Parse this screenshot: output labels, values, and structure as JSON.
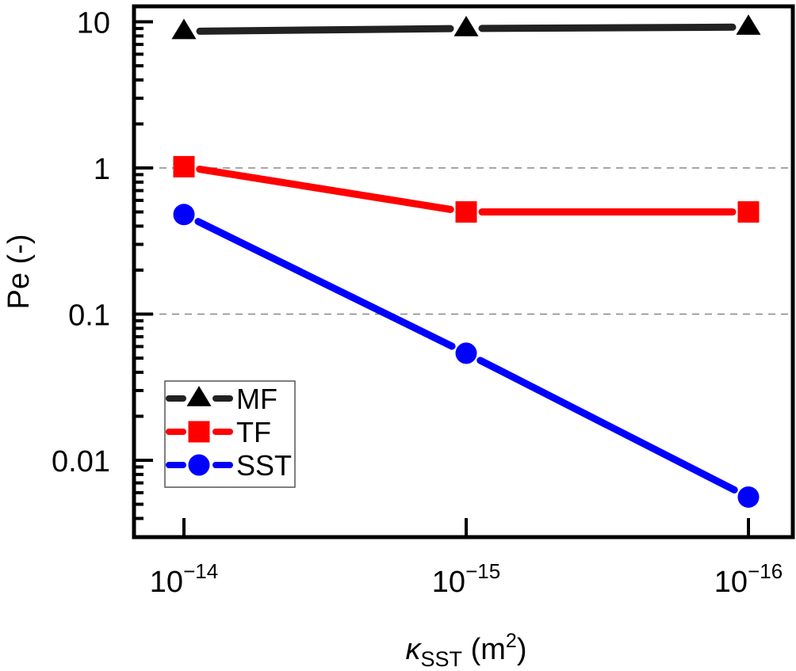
{
  "chart_data": {
    "type": "line",
    "title": "",
    "xlabel": {
      "main": "κ",
      "sub": "SST",
      "unit_pre": " (m",
      "unit_sup": "2",
      "unit_post": ")"
    },
    "ylabel": "Pe (-)",
    "x_scale": "categorical-log",
    "y_scale": "log",
    "ylim": [
      0.003,
      13
    ],
    "categories": [
      {
        "base": "10",
        "exp": "−14",
        "value": 1e-14
      },
      {
        "base": "10",
        "exp": "−15",
        "value": 1e-15
      },
      {
        "base": "10",
        "exp": "−16",
        "value": 1e-16
      }
    ],
    "yticks": [
      {
        "label": "10",
        "value": 10
      },
      {
        "label": "1",
        "value": 1
      },
      {
        "label": "0.1",
        "value": 0.1
      },
      {
        "label": "0.01",
        "value": 0.01
      }
    ],
    "grid": {
      "y_dashed_at": [
        1,
        0.1
      ],
      "color": "#888888"
    },
    "series": [
      {
        "name": "MF",
        "color": "#000000",
        "line_color": "#222222",
        "marker": "triangle",
        "values": [
          8.6,
          9.0,
          9.2
        ]
      },
      {
        "name": "TF",
        "color": "#ff0000",
        "line_color": "#ff0000",
        "marker": "square",
        "values": [
          1.02,
          0.5,
          0.5
        ]
      },
      {
        "name": "SST",
        "color": "#0000ff",
        "line_color": "#0000ff",
        "marker": "circle",
        "values": [
          0.48,
          0.054,
          0.0056
        ]
      }
    ],
    "legend": {
      "position": "bottom-left",
      "entries": [
        "MF",
        "TF",
        "SST"
      ]
    }
  }
}
